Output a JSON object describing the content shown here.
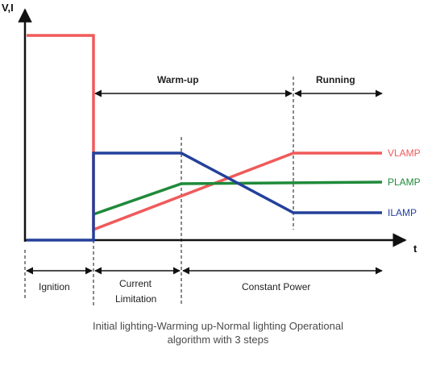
{
  "diagram": {
    "y_axis_label": "V,I",
    "x_axis_label": "t",
    "top_phases": {
      "warmup": "Warm-up",
      "running": "Running"
    },
    "series": {
      "vlamp": {
        "label": "VLAMP",
        "color": "#f05a5a"
      },
      "plamp": {
        "label": "PLAMP",
        "color": "#1f8a3a"
      },
      "ilamp": {
        "label": "ILAMP",
        "color": "#24409a"
      }
    },
    "bottom_phases": {
      "ignition": "Ignition",
      "current_limitation_line1": "Current",
      "current_limitation_line2": "Limitation",
      "constant_power": "Constant Power"
    }
  },
  "caption": {
    "line1": "Initial lighting-Warming up-Normal lighting Operational",
    "line2": "algorithm with 3 steps"
  }
}
